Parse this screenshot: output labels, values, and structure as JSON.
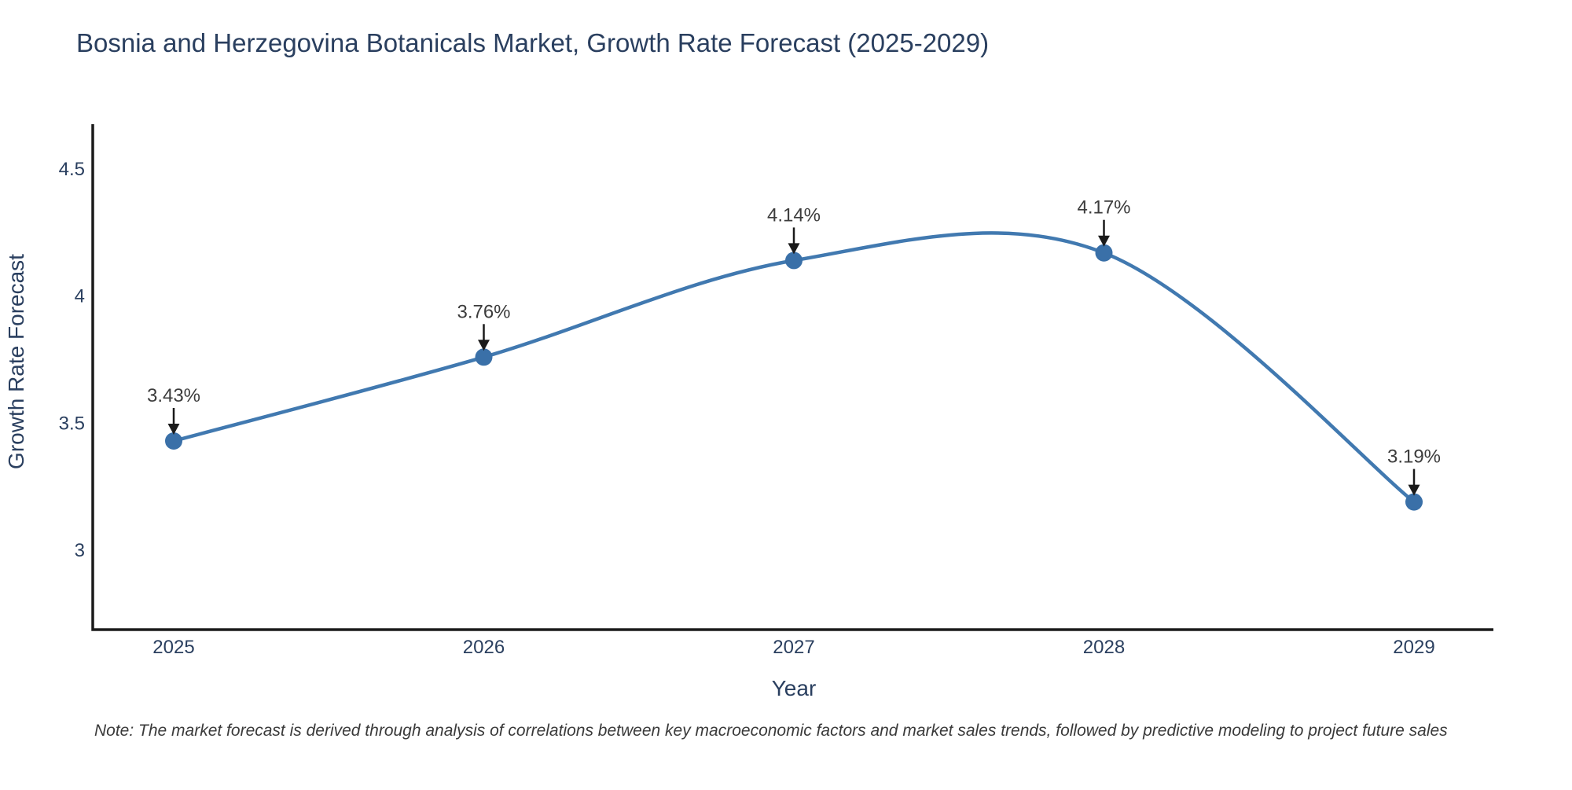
{
  "page": {
    "title": "Bosnia and Herzegovina Botanicals Market, Growth Rate Forecast (2025-2029)",
    "footnote": "Note: The market forecast is derived through analysis of correlations between key macroeconomic factors and market sales trends, followed by predictive modeling to project future sales"
  },
  "chart_data": {
    "type": "line",
    "title": "Bosnia and Herzegovina Botanicals Market, Growth Rate Forecast (2025-2029)",
    "xlabel": "Year",
    "ylabel": "Growth Rate Forecast",
    "categories": [
      "2025",
      "2026",
      "2027",
      "2028",
      "2029"
    ],
    "values": [
      3.43,
      3.76,
      4.14,
      4.17,
      3.19
    ],
    "point_labels": [
      "3.43%",
      "3.76%",
      "4.14%",
      "4.17%",
      "3.19%"
    ],
    "yticks": [
      3,
      3.5,
      4,
      4.5
    ],
    "ytick_labels": [
      "3",
      "3.5",
      "4",
      "4.5"
    ],
    "ylim": [
      2.69,
      4.68
    ],
    "line_shape": "spline",
    "grid": false,
    "legend": "none",
    "annotations_have_arrows": true,
    "colors": {
      "line": "#4179b0",
      "marker": "#3a70a8",
      "axis_line": "#1a1a1a",
      "arrow": "#1a1a1a",
      "title_text": "#2a3f5f",
      "tick_text": "#2a3f5f",
      "annotation_text": "#3c3c3c",
      "note_text": "#3a3a3a",
      "background": "#ffffff"
    }
  }
}
